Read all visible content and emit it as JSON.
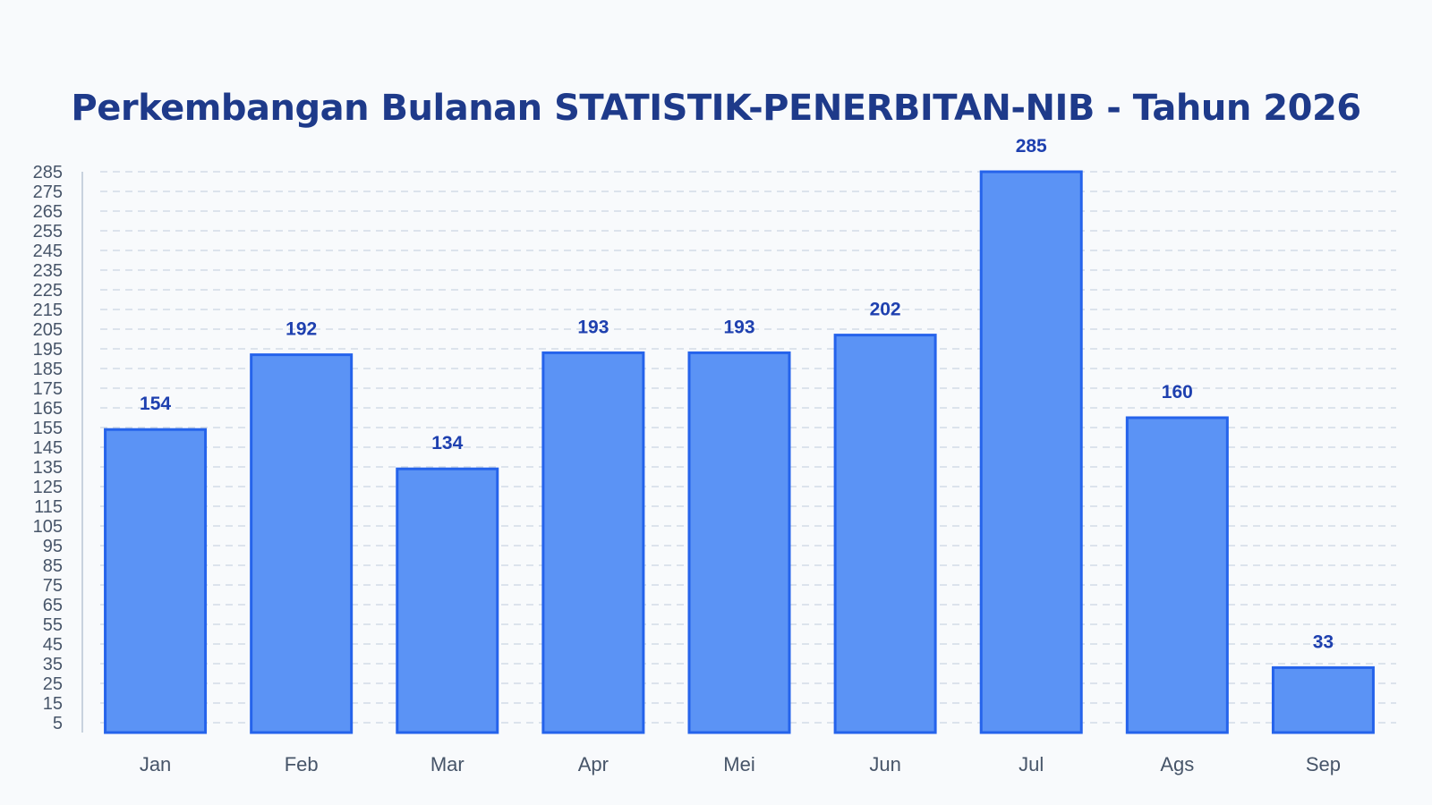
{
  "colors": {
    "background": "#f8fafc",
    "bar_fill": "#5b93f5",
    "bar_stroke": "#2563eb",
    "value_label": "#1e40af",
    "title": "#1e3a8a",
    "axis_text": "#475569",
    "grid": "#cbd5e1"
  },
  "chart_data": {
    "type": "bar",
    "title": "Perkembangan Bulanan STATISTIK-PENERBITAN-NIB - Tahun 2026",
    "xlabel": "",
    "ylabel": "",
    "categories": [
      "Jan",
      "Feb",
      "Mar",
      "Apr",
      "Mei",
      "Jun",
      "Jul",
      "Ags",
      "Sep"
    ],
    "values": [
      154,
      192,
      134,
      193,
      193,
      202,
      285,
      160,
      33
    ],
    "ylim": [
      0,
      285
    ],
    "yticks": [
      5,
      15,
      25,
      35,
      45,
      55,
      65,
      75,
      85,
      95,
      105,
      115,
      125,
      135,
      145,
      155,
      165,
      175,
      185,
      195,
      205,
      215,
      225,
      235,
      245,
      255,
      265,
      275,
      285
    ],
    "grid": true,
    "data_labels": true
  }
}
